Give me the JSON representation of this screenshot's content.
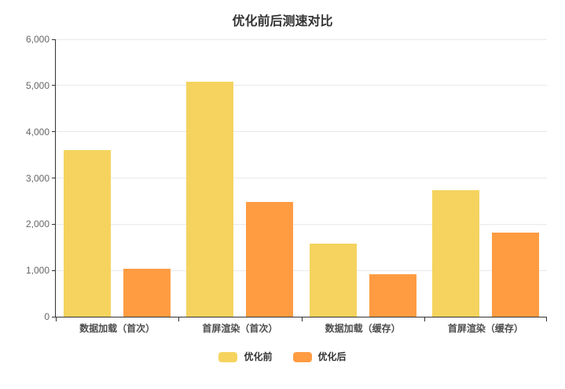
{
  "title": "优化前后测速对比",
  "chart_data": {
    "type": "bar",
    "title": "优化前后测速对比",
    "categories": [
      "数据加载（首次）",
      "首屏渲染（首次）",
      "数据加载（缓存）",
      "首屏渲染（缓存）"
    ],
    "series": [
      {
        "name": "优化前",
        "color": "#F5D35E",
        "values": [
          3600,
          5080,
          1580,
          2740
        ]
      },
      {
        "name": "优化后",
        "color": "#FF9C42",
        "values": [
          1040,
          2480,
          910,
          1820
        ]
      }
    ],
    "xlabel": "",
    "ylabel": "",
    "ylim": [
      0,
      6000
    ],
    "ytick_step": 1000,
    "ytick_labels": [
      "0",
      "1,000",
      "2,000",
      "3,000",
      "4,000",
      "5,000",
      "6,000"
    ],
    "grid": true,
    "legend_position": "bottom",
    "legend_labels": [
      "优化前",
      "优化后"
    ]
  },
  "colors": {
    "axis": "#333333",
    "grid": "#e8e8e8",
    "y_tick_label": "#666666",
    "x_tick_label": "#4d4d4d",
    "title": "#333333",
    "background": "#ffffff"
  }
}
